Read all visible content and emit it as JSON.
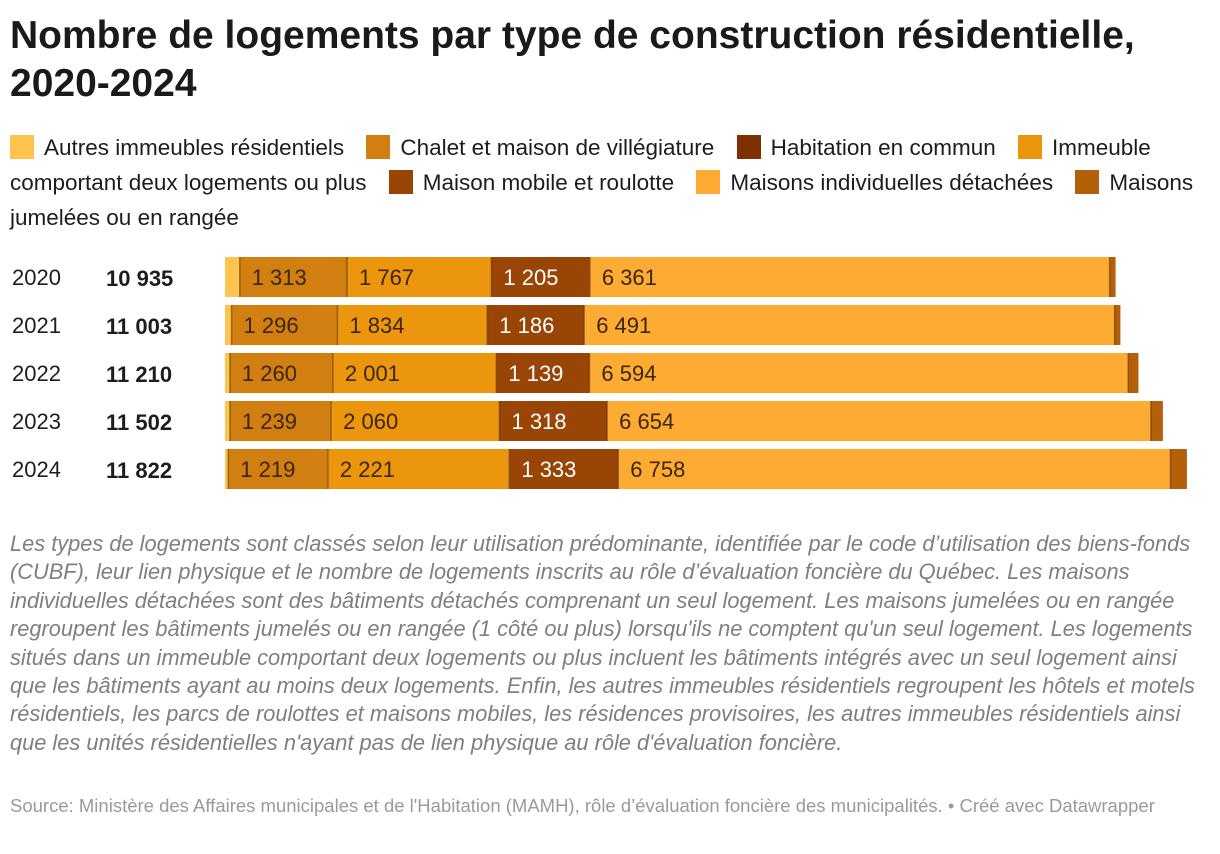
{
  "title": "Nombre de logements par type de construction résidentielle, 2020-2024",
  "note": "Les types de logements sont classés selon leur utilisation prédominante, identifiée par le code d’utilisation des biens-fonds (CUBF), leur lien physique et le nombre de logements inscrits au rôle d’évaluation foncière du Québec. Les maisons individuelles détachées sont des bâtiments détachés comprenant un seul logement. Les maisons jumelées ou en rangée regroupent les bâtiments jumelés ou en rangée (1 côté ou plus) lorsqu'ils ne comptent qu'un seul logement. Les logements situés dans un immeuble comportant deux logements ou plus incluent les bâtiments intégrés avec un seul logement ainsi que les bâtiments ayant au moins deux logements. Enfin, les autres immeubles résidentiels regroupent les hôtels et motels résidentiels, les parcs de roulottes et maisons mobiles, les résidences provisoires, les autres immeubles résidentiels ainsi que les unités résidentielles n'ayant pas de lien physique au rôle d'évaluation foncière.",
  "source": "Source: Ministère des Affaires municipales et de l'Habitation (MAMH), rôle d’évaluation foncière des municipalités. • Créé avec Datawrapper",
  "legend": [
    {
      "label": "Autres immeubles résidentiels",
      "color": "#fec44f"
    },
    {
      "label": "Chalet et maison de villégiature",
      "color": "#d07f10"
    },
    {
      "label": "Habitation en commun",
      "color": "#7f3000"
    },
    {
      "label": "Immeuble comportant deux logements ou plus",
      "color": "#ec960e"
    },
    {
      "label": "Maison mobile et roulotte",
      "color": "#984505"
    },
    {
      "label": "Maisons individuelles détachées",
      "color": "#fdab32"
    },
    {
      "label": "Maisons jumelées ou en rangée",
      "color": "#b45f09"
    }
  ],
  "chart_data": {
    "type": "bar",
    "orientation": "horizontal",
    "stacked": true,
    "categories": [
      "2020",
      "2021",
      "2022",
      "2023",
      "2024"
    ],
    "totals": [
      "10 935",
      "11 003",
      "11 210",
      "11 502",
      "11 822"
    ],
    "total_values": [
      10935,
      11003,
      11210,
      11502,
      11822
    ],
    "series": [
      {
        "name": "Autres immeubles résidentiels",
        "color": "#fec44f",
        "values": [
          180,
          80,
          60,
          60,
          40
        ],
        "labels": [
          "",
          "",
          "",
          "",
          ""
        ]
      },
      {
        "name": "Chalet et maison de villégiature",
        "color": "#d07f10",
        "values": [
          1313,
          1296,
          1260,
          1239,
          1219
        ],
        "labels": [
          "1 313",
          "1 296",
          "1 260",
          "1 239",
          "1 219"
        ]
      },
      {
        "name": "Immeuble comportant deux logements ou plus",
        "color": "#ec960e",
        "values": [
          1767,
          1834,
          2001,
          2060,
          2221
        ],
        "labels": [
          "1 767",
          "1 834",
          "2 001",
          "2 060",
          "2 221"
        ]
      },
      {
        "name": "Habitation en commun",
        "color": "#7f3000",
        "values": [
          1205,
          1186,
          1139,
          1318,
          1333
        ],
        "labels": [
          "1 205",
          "1 186",
          "1 139",
          "1 318",
          "1 333"
        ],
        "bar_color": "#984505"
      },
      {
        "name": "Maisons individuelles détachées",
        "color": "#fdab32",
        "values": [
          6361,
          6491,
          6594,
          6654,
          6758
        ],
        "labels": [
          "6 361",
          "6 491",
          "6 594",
          "6 654",
          "6 758"
        ]
      },
      {
        "name": "Maisons jumelées ou en rangée",
        "color": "#b45f09",
        "values": [
          73,
          71,
          125,
          147,
          201
        ],
        "labels": [
          "",
          "",
          "",
          "",
          ""
        ]
      }
    ]
  }
}
